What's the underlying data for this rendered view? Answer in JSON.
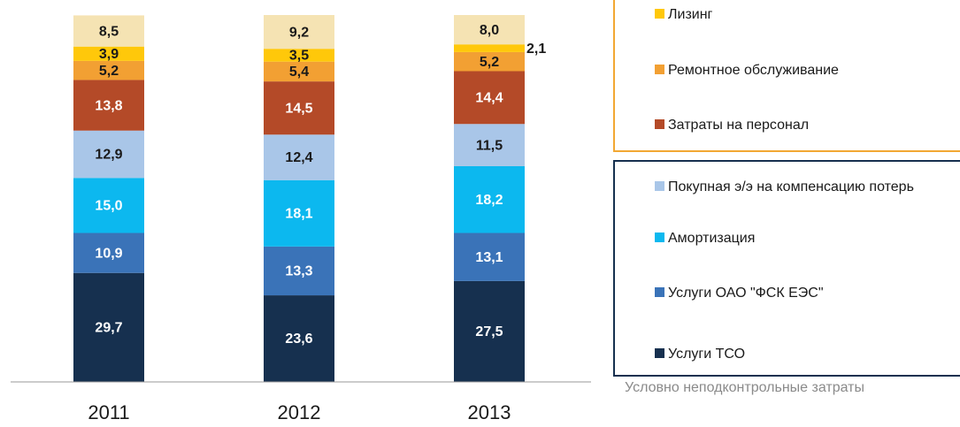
{
  "chart_data": {
    "type": "stacked_bar",
    "categories": [
      "2011",
      "2012",
      "2013"
    ],
    "ylim": [
      0,
      100
    ],
    "series": [
      {
        "name": "Услуги ТСО",
        "color": "#16304f",
        "values": [
          29.7,
          23.6,
          27.5
        ],
        "value_labels": [
          "29,7",
          "23,6",
          "27,5"
        ]
      },
      {
        "name": "Услуги ОАО \"ФСК ЕЭС\"",
        "color": "#3a73b8",
        "values": [
          10.9,
          13.3,
          13.1
        ],
        "value_labels": [
          "10,9",
          "13,3",
          "13,1"
        ]
      },
      {
        "name": "Амортизация",
        "color": "#0cb8ef",
        "values": [
          15.0,
          18.1,
          18.2
        ],
        "value_labels": [
          "15,0",
          "18,1",
          "18,2"
        ]
      },
      {
        "name": "Покупная э/э на компенсацию потерь",
        "color": "#a9c6e8",
        "values": [
          12.9,
          12.4,
          11.5
        ],
        "value_labels": [
          "12,9",
          "12,4",
          "11,5"
        ]
      },
      {
        "name": "Затраты на персонал",
        "color": "#b44a28",
        "values": [
          13.8,
          14.5,
          14.4
        ],
        "value_labels": [
          "13,8",
          "14,5",
          "14,4"
        ]
      },
      {
        "name": "Ремонтное обслуживание",
        "color": "#f2a033",
        "values": [
          5.2,
          5.4,
          5.2
        ],
        "value_labels": [
          "5,2",
          "5,4",
          "5,2"
        ]
      },
      {
        "name": "Лизинг",
        "color": "#ffc80a",
        "values": [
          3.9,
          3.5,
          2.1
        ],
        "value_labels": [
          "3,9",
          "3,5",
          "2,1"
        ]
      },
      {
        "color": "#f5e3b3",
        "values": [
          8.5,
          9.2,
          8.0
        ],
        "value_labels": [
          "8,5",
          "9,2",
          "8,0"
        ]
      }
    ],
    "annotation": "Условно неподконтрольные затраты"
  }
}
